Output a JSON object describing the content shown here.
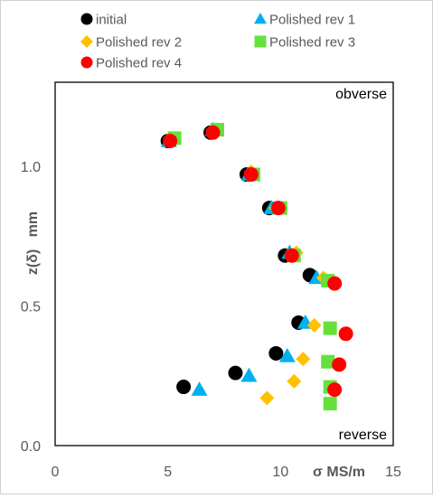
{
  "chart_data": {
    "type": "scatter",
    "xlabel": "σ MS/m",
    "ylabel": "z(δ)   mm",
    "xlim": [
      0,
      15
    ],
    "ylim": [
      0,
      1.3
    ],
    "xticks": [
      "0",
      "5",
      "10",
      "15"
    ],
    "yticks": [
      "0.0",
      "0.5",
      "1.0"
    ],
    "grid": false,
    "legend_position": "top",
    "annotations": {
      "top": "obverse",
      "bottom": "reverse"
    },
    "series": [
      {
        "name": "initial",
        "marker": "circle",
        "color": "#000000",
        "points": [
          [
            5.0,
            1.09
          ],
          [
            6.9,
            1.12
          ],
          [
            8.5,
            0.97
          ],
          [
            9.5,
            0.85
          ],
          [
            10.2,
            0.68
          ],
          [
            11.3,
            0.61
          ],
          [
            10.8,
            0.44
          ],
          [
            9.8,
            0.33
          ],
          [
            8.0,
            0.26
          ],
          [
            5.7,
            0.21
          ]
        ]
      },
      {
        "name": "Polished rev 1",
        "marker": "triangle",
        "color": "#00b0f0",
        "points": [
          [
            5.05,
            1.09
          ],
          [
            7.0,
            1.13
          ],
          [
            8.6,
            0.97
          ],
          [
            9.6,
            0.85
          ],
          [
            10.4,
            0.69
          ],
          [
            11.6,
            0.6
          ],
          [
            11.1,
            0.44
          ],
          [
            10.3,
            0.32
          ],
          [
            8.6,
            0.25
          ],
          [
            6.4,
            0.2
          ]
        ]
      },
      {
        "name": "Polished rev 2",
        "marker": "diamond",
        "color": "#ffc000",
        "points": [
          [
            5.1,
            1.1
          ],
          [
            7.0,
            1.13
          ],
          [
            8.7,
            0.98
          ],
          [
            9.8,
            0.85
          ],
          [
            10.7,
            0.69
          ],
          [
            11.9,
            0.6
          ],
          [
            11.5,
            0.43
          ],
          [
            11.0,
            0.31
          ],
          [
            10.6,
            0.23
          ],
          [
            9.4,
            0.17
          ]
        ]
      },
      {
        "name": "Polished rev 3",
        "marker": "square",
        "color": "#66e03a",
        "points": [
          [
            5.3,
            1.1
          ],
          [
            7.2,
            1.13
          ],
          [
            8.8,
            0.97
          ],
          [
            10.0,
            0.85
          ],
          [
            10.6,
            0.68
          ],
          [
            12.1,
            0.59
          ],
          [
            12.2,
            0.42
          ],
          [
            12.1,
            0.3
          ],
          [
            12.2,
            0.21
          ],
          [
            12.2,
            0.15
          ]
        ]
      },
      {
        "name": "Polished rev 4",
        "marker": "circle",
        "color": "#ff0000",
        "points": [
          [
            5.1,
            1.09
          ],
          [
            7.0,
            1.12
          ],
          [
            8.7,
            0.97
          ],
          [
            9.9,
            0.85
          ],
          [
            10.5,
            0.68
          ],
          [
            12.4,
            0.58
          ],
          [
            12.9,
            0.4
          ],
          [
            12.6,
            0.29
          ],
          [
            12.4,
            0.2
          ]
        ]
      }
    ]
  }
}
